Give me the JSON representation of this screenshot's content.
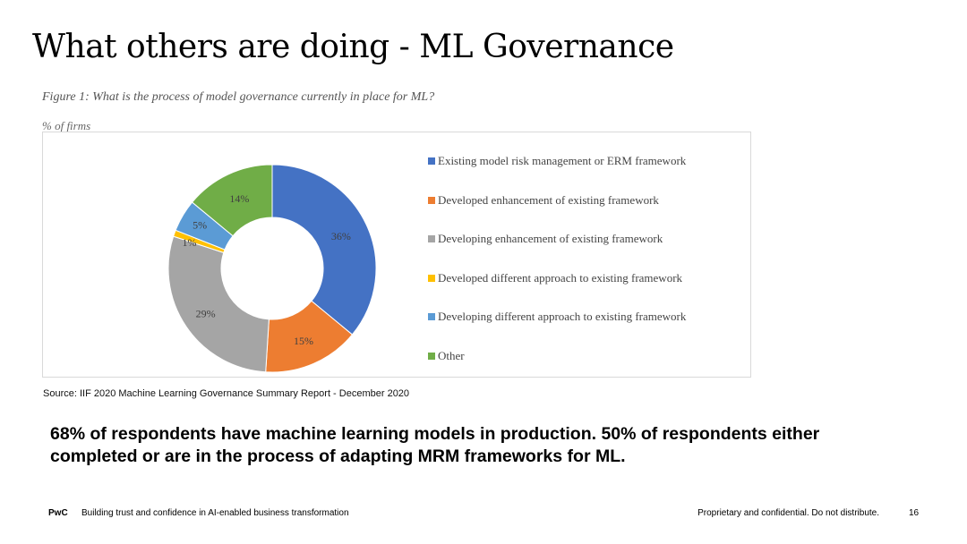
{
  "slide": {
    "title": "What others are doing - ML Governance",
    "figure_caption": "Figure 1: What is the process of model governance currently in place for ML?",
    "figure_subcaption": "% of firms",
    "source": "Source: IIF 2020 Machine Learning Governance Summary Report - December 2020",
    "key_message": "68% of respondents have machine learning models in production. 50% of respondents either completed or are in the process of adapting MRM frameworks for ML."
  },
  "footer": {
    "brand": "PwC",
    "tagline": "Building trust and confidence in AI-enabled business transformation",
    "confidentiality": "Proprietary and confidential. Do not distribute.",
    "page_number": "16"
  },
  "chart_data": {
    "type": "pie",
    "donut": true,
    "start_angle_deg": 0,
    "direction": "clockwise",
    "legend_position": "right",
    "categories": [
      "Existing model risk management or ERM framework",
      "Developed enhancement of existing framework",
      "Developing enhancement of existing framework",
      "Developed different approach to existing framework",
      "Developing different approach to existing framework",
      "Other"
    ],
    "values": [
      36,
      15,
      29,
      1,
      5,
      14
    ],
    "data_labels": [
      "36%",
      "15%",
      "29%",
      "1%",
      "5%",
      "14%"
    ],
    "colors": [
      "#4472C4",
      "#ED7D31",
      "#A5A5A5",
      "#FFC000",
      "#5B9BD5",
      "#70AD47"
    ]
  }
}
